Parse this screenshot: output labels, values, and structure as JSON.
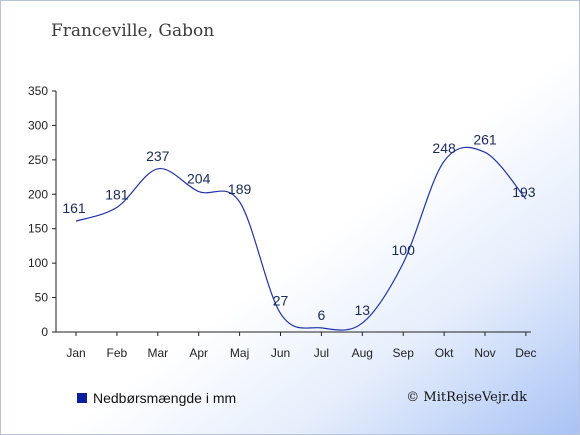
{
  "title": "Franceville, Gabon",
  "legend_label": "Nedbørsmængde i mm",
  "credit": "© MitRejseVejr.dk",
  "colors": {
    "line": "#2233aa",
    "axis": "#222222",
    "legend": "#0b1f9e"
  },
  "chart_data": {
    "type": "line",
    "title": "Franceville, Gabon",
    "xlabel": "",
    "ylabel": "",
    "categories": [
      "Jan",
      "Feb",
      "Mar",
      "Apr",
      "Maj",
      "Jun",
      "Jul",
      "Aug",
      "Sep",
      "Okt",
      "Nov",
      "Dec"
    ],
    "series": [
      {
        "name": "Nedbørsmængde i mm",
        "values": [
          161,
          181,
          237,
          204,
          189,
          27,
          6,
          13,
          100,
          248,
          261,
          193
        ]
      }
    ],
    "ylim": [
      0,
      350
    ],
    "yticks": [
      0,
      50,
      100,
      150,
      200,
      250,
      300,
      350
    ],
    "grid": false,
    "legend": "bottom-left"
  }
}
